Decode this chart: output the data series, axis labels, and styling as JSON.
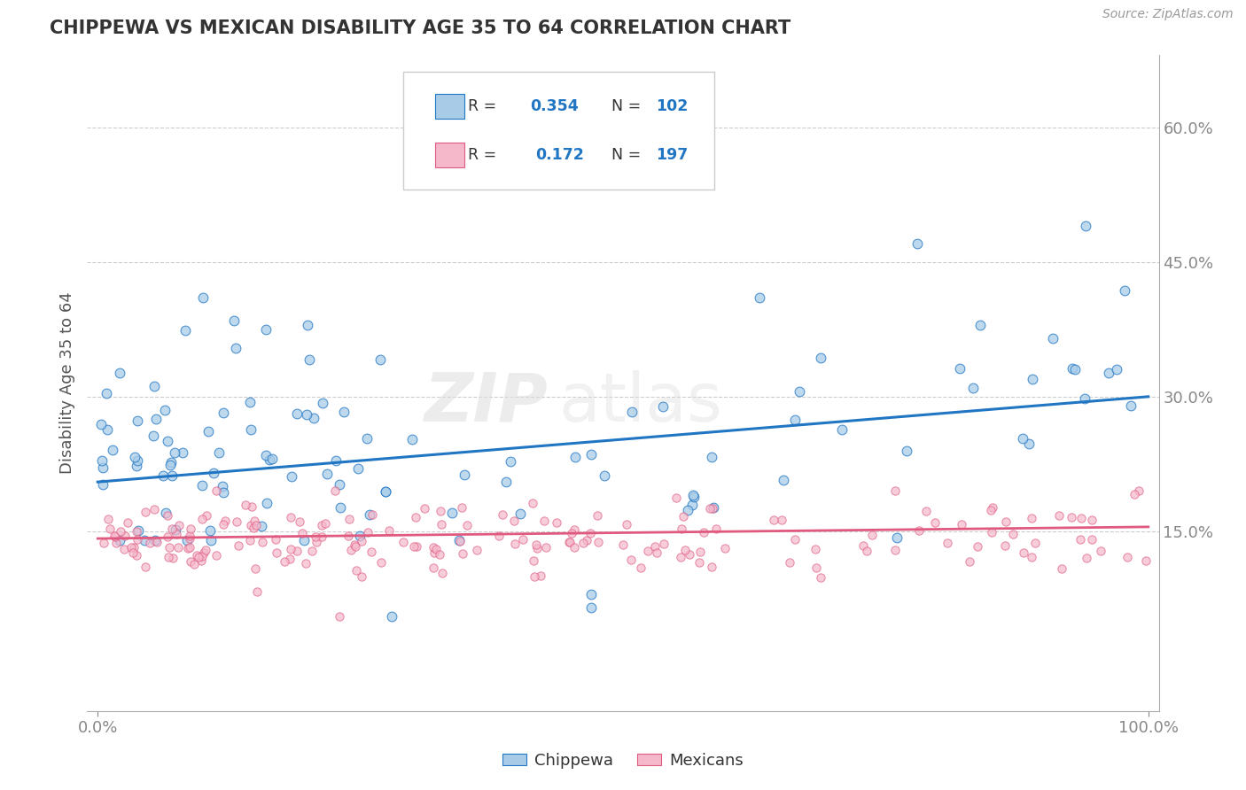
{
  "title": "CHIPPEWA VS MEXICAN DISABILITY AGE 35 TO 64 CORRELATION CHART",
  "source_text": "Source: ZipAtlas.com",
  "ylabel": "Disability Age 35 to 64",
  "xlim": [
    -0.01,
    1.01
  ],
  "ylim": [
    -0.05,
    0.68
  ],
  "yticks": [
    0.15,
    0.3,
    0.45,
    0.6
  ],
  "ytick_labels": [
    "15.0%",
    "30.0%",
    "45.0%",
    "60.0%"
  ],
  "xtick_labels": [
    "0.0%",
    "100.0%"
  ],
  "chippewa_color": "#a8cce8",
  "mexican_color": "#f5b8cb",
  "line_chippewa": "#2176c4",
  "line_mexican": "#e05a80",
  "watermark_zip": "ZIP",
  "watermark_atlas": "atlas",
  "legend_r_label1": "R = ",
  "legend_r_val1": "0.354",
  "legend_n_label1": "N = ",
  "legend_n_val1": "102",
  "legend_r_label2": "R =  ",
  "legend_r_val2": "0.172",
  "legend_n_label2": "N = ",
  "legend_n_val2": "197",
  "chip_line_start_y": 0.205,
  "chip_line_end_y": 0.3,
  "mex_line_start_y": 0.142,
  "mex_line_end_y": 0.155
}
